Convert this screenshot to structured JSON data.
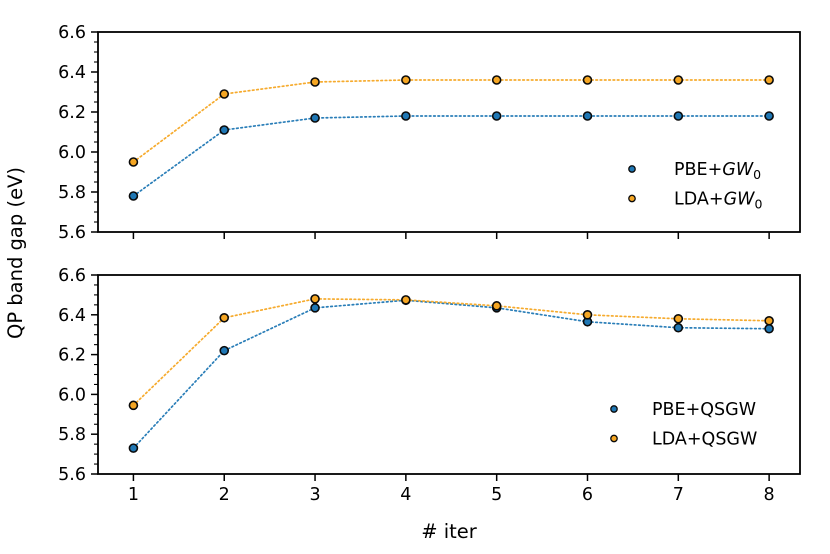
{
  "figure": {
    "xlabel": "# iter",
    "ylabel": "QP band gap (eV)",
    "background": "#ffffff",
    "spine_color": "#000000"
  },
  "colors": {
    "blue": "#1f77b4",
    "orange": "#f5a623",
    "marker_edge": "#0a0a0a"
  },
  "chart_data": [
    {
      "type": "scatter",
      "title": "",
      "x": [
        1,
        2,
        3,
        4,
        5,
        6,
        7,
        8
      ],
      "x_ticklabels": [
        "1",
        "2",
        "3",
        "4",
        "5",
        "6",
        "7",
        "8"
      ],
      "show_x_ticklabels": false,
      "xlim": [
        0.61,
        8.34
      ],
      "ylim": [
        5.6,
        6.6
      ],
      "y_ticks": [
        5.6,
        5.8,
        6.0,
        6.2,
        6.4,
        6.6
      ],
      "y_ticklabels": [
        "5.6",
        "5.8",
        "6.0",
        "6.2",
        "6.4",
        "6.6"
      ],
      "y_minor_step": 0.05,
      "grid": false,
      "legend_position": "lower right",
      "series": [
        {
          "name": "PBE+GW0",
          "color": "#1f77b4",
          "line_style": "dotted",
          "marker": "circle",
          "values": [
            5.78,
            6.11,
            6.17,
            6.18,
            6.18,
            6.18,
            6.18,
            6.18
          ],
          "label_parts": [
            {
              "t": "PBE+"
            },
            {
              "t": "GW",
              "italic": true
            },
            {
              "t": "0",
              "sub": true
            }
          ]
        },
        {
          "name": "LDA+GW0",
          "color": "#f5a623",
          "line_style": "dotted",
          "marker": "circle",
          "values": [
            5.95,
            6.29,
            6.35,
            6.36,
            6.36,
            6.36,
            6.36,
            6.36
          ],
          "label_parts": [
            {
              "t": "LDA+"
            },
            {
              "t": "GW",
              "italic": true
            },
            {
              "t": "0",
              "sub": true
            }
          ]
        }
      ]
    },
    {
      "type": "scatter",
      "title": "",
      "x": [
        1,
        2,
        3,
        4,
        5,
        6,
        7,
        8
      ],
      "x_ticklabels": [
        "1",
        "2",
        "3",
        "4",
        "5",
        "6",
        "7",
        "8"
      ],
      "show_x_ticklabels": true,
      "xlim": [
        0.61,
        8.34
      ],
      "ylim": [
        5.6,
        6.6
      ],
      "y_ticks": [
        5.6,
        5.8,
        6.0,
        6.2,
        6.4,
        6.6
      ],
      "y_ticklabels": [
        "5.6",
        "5.8",
        "6.0",
        "6.2",
        "6.4",
        "6.6"
      ],
      "y_minor_step": 0.05,
      "grid": false,
      "legend_position": "lower right",
      "series": [
        {
          "name": "PBE+QSGW",
          "color": "#1f77b4",
          "line_style": "dotted",
          "marker": "circle",
          "values": [
            5.73,
            6.22,
            6.435,
            6.473,
            6.435,
            6.365,
            6.335,
            6.33
          ],
          "label_parts": [
            {
              "t": "PBE+QSGW"
            }
          ]
        },
        {
          "name": "LDA+QSGW",
          "color": "#f5a623",
          "line_style": "dotted",
          "marker": "circle",
          "values": [
            5.945,
            6.385,
            6.48,
            6.475,
            6.445,
            6.4,
            6.38,
            6.37
          ],
          "label_parts": [
            {
              "t": "LDA+QSGW"
            }
          ]
        }
      ]
    }
  ]
}
